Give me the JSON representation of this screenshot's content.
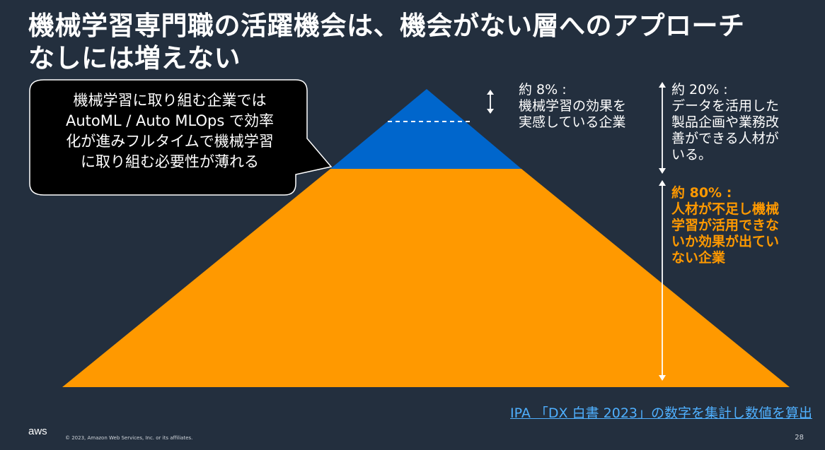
{
  "slide": {
    "title_line1": "機械学習専門職の活躍機会は、機会がない層へのアプローチ",
    "title_line2": "なしには増えない"
  },
  "callout": {
    "line1": "機械学習に取り組む企業では",
    "line2": "AutoML / Auto MLOps で効率",
    "line3": "化が進みフルタイムで機械学習",
    "line4": "に取り組む必要性が薄れる"
  },
  "annotations": {
    "top": {
      "percent": "約 8% :",
      "line1": "機械学習の効果を",
      "line2": "実感している企業"
    },
    "middle": {
      "percent": "約 20% :",
      "line1": "データを活用した",
      "line2": "製品企画や業務改",
      "line3": "善ができる人材が",
      "line4": "いる。"
    },
    "bottom": {
      "percent": "約 80% :",
      "line1": "人材が不足し機械",
      "line2": "学習が活用できな",
      "line3": "いか効果が出てい",
      "line4": "ない企業"
    }
  },
  "colors": {
    "background": "#232f3e",
    "pyramid_top": "#0066cc",
    "pyramid_bottom": "#ff9900",
    "source_link": "#4fb0ff"
  },
  "source_text": "IPA 「DX 白書 2023」の数字を集計し数値を算出",
  "footer": {
    "logo": "aws",
    "copyright": "© 2023, Amazon Web Services, Inc. or its affiliates.",
    "page_number": "28"
  }
}
